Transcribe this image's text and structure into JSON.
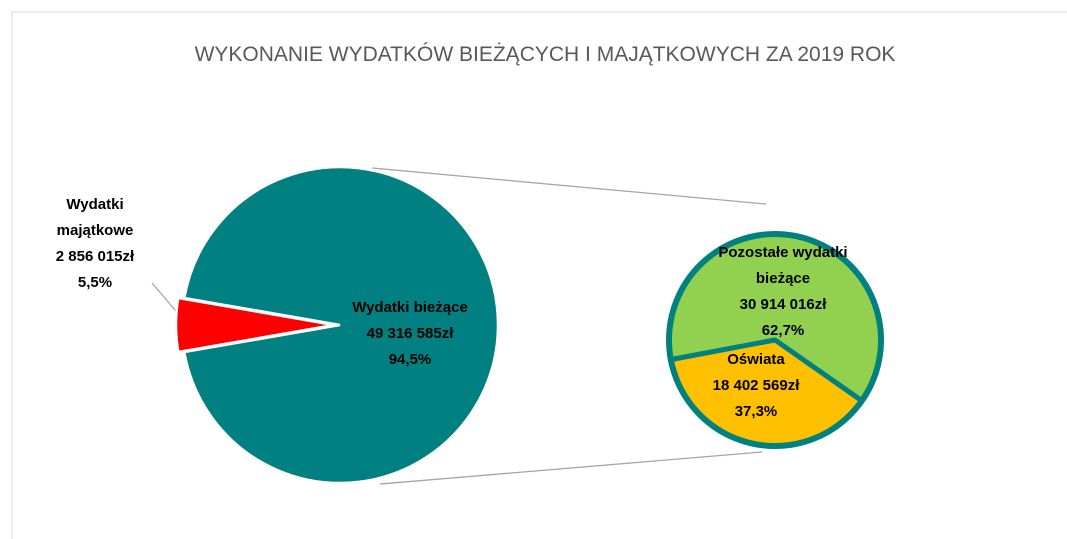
{
  "chart_data": {
    "type": "pie-of-pie",
    "title": "WYKONANIE WYDATKÓW BIEŻĄCYCH I MAJĄTKOWYCH ZA 2019 ROK",
    "categories": [
      "Wydatki majątkowe",
      "Wydatki bieżące"
    ],
    "values": [
      2856015,
      49316585
    ],
    "value_labels": [
      "2 856 015zł",
      "49 316 585zł"
    ],
    "percents": [
      5.5,
      94.5
    ],
    "percent_labels": [
      "5,5%",
      "94,5%"
    ],
    "colors": [
      "#ff0000",
      "#008080"
    ],
    "secondary": {
      "categories": [
        "Pozostałe wydatki bieżące",
        "Oświata"
      ],
      "values": [
        30914016,
        18402569
      ],
      "value_labels": [
        "30 914 016zł",
        "18 402 569zł"
      ],
      "percents": [
        62.7,
        37.3
      ],
      "percent_labels": [
        "62,7%",
        "37,3%"
      ],
      "colors": [
        "#92d050",
        "#ffc000"
      ]
    }
  }
}
